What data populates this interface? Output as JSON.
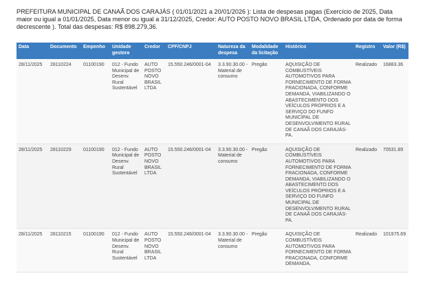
{
  "heading": "PREFEITURA MUNICIPAL DE CANAÃ DOS CARAJÁS ( 01/01/2021 a 20/01/2026 ): Lista de despesas pagas (Exercício de 2025, Data maior ou igual a 01/01/2025, Data menor ou igual a 31/12/2025, Credor: AUTO POSTO NOVO BRASIL LTDA, Ordenado por data de forma decrescente ). Total das despesas: R$ 898.279,36.",
  "table": {
    "columns": [
      "Data",
      "Documento",
      "Empenho",
      "Unidade gestora",
      "Credor",
      "CPF/CNPJ",
      "Natureza da despesa",
      "Modalidade da licitação",
      "Histórico",
      "Registro",
      "Valor (R$)"
    ],
    "rows": [
      [
        "28/11/2025",
        "28110224",
        "01100190",
        "012 - Fundo Municipal de Desenv. Rural Sustentável",
        "AUTO POSTO NOVO BRASIL LTDA",
        "15.550.246/0001-04",
        "3.3.90.30.00 - Material de consumo",
        "Pregão",
        "AQUISIÇÃO DE COMBUSTÍVEIS AUTOMOTIVOS PARA FORNECIMENTO DE FORMA FRACIONADA, CONFORME DEMANDA, VIABILIZANDO O ABASTECIMENTO DOS VEÍCULOS PRÓPRIOS E A SERVIÇO DO FUNFO MUNICIPAL DE DESENVOLVIMENTO RURAL DE CANAÃ DOS CARAJÁS-PA.",
        "Realizado",
        "16883.36"
      ],
      [
        "28/11/2025",
        "28110229",
        "01100190",
        "012 - Fundo Municipal de Desenv. Rural Sustentável",
        "AUTO POSTO NOVO BRASIL LTDA",
        "15.550.246/0001-04",
        "3.3.90.30.00 - Material de consumo",
        "Pregão",
        "AQUISIÇÃO DE COMBUSTÍVEIS AUTOMOTIVOS PARA FORNECIMENTO DE FORMA FRACIONADA, CONFORME DEMANDA, VIABILIZANDO O ABASTECIMENTO DOS VEÍCULOS PRÓPRIOS E A SERVIÇO DO FUNFO MUNICIPAL DE DESENVOLVIMENTO RURAL DE CANAÃ DOS CARAJÁS-PA.",
        "Realizado",
        "70531.89"
      ],
      [
        "28/11/2025",
        "28110215",
        "01100190",
        "012 - Fundo Municipal de Desenv. Rural Sustentável",
        "AUTO POSTO NOVO BRASIL LTDA",
        "15.550.246/0001-04",
        "3.3.90.30.00 - Material de consumo",
        "Pregão",
        "AQUISIÇÃO DE COMBUSTÍVEIS AUTOMOTIVOS PARA FORNECIMENTO DE FORMA FRACIONADA, CONFORME DEMANDA,",
        "Realizado",
        "101975.69"
      ]
    ]
  }
}
